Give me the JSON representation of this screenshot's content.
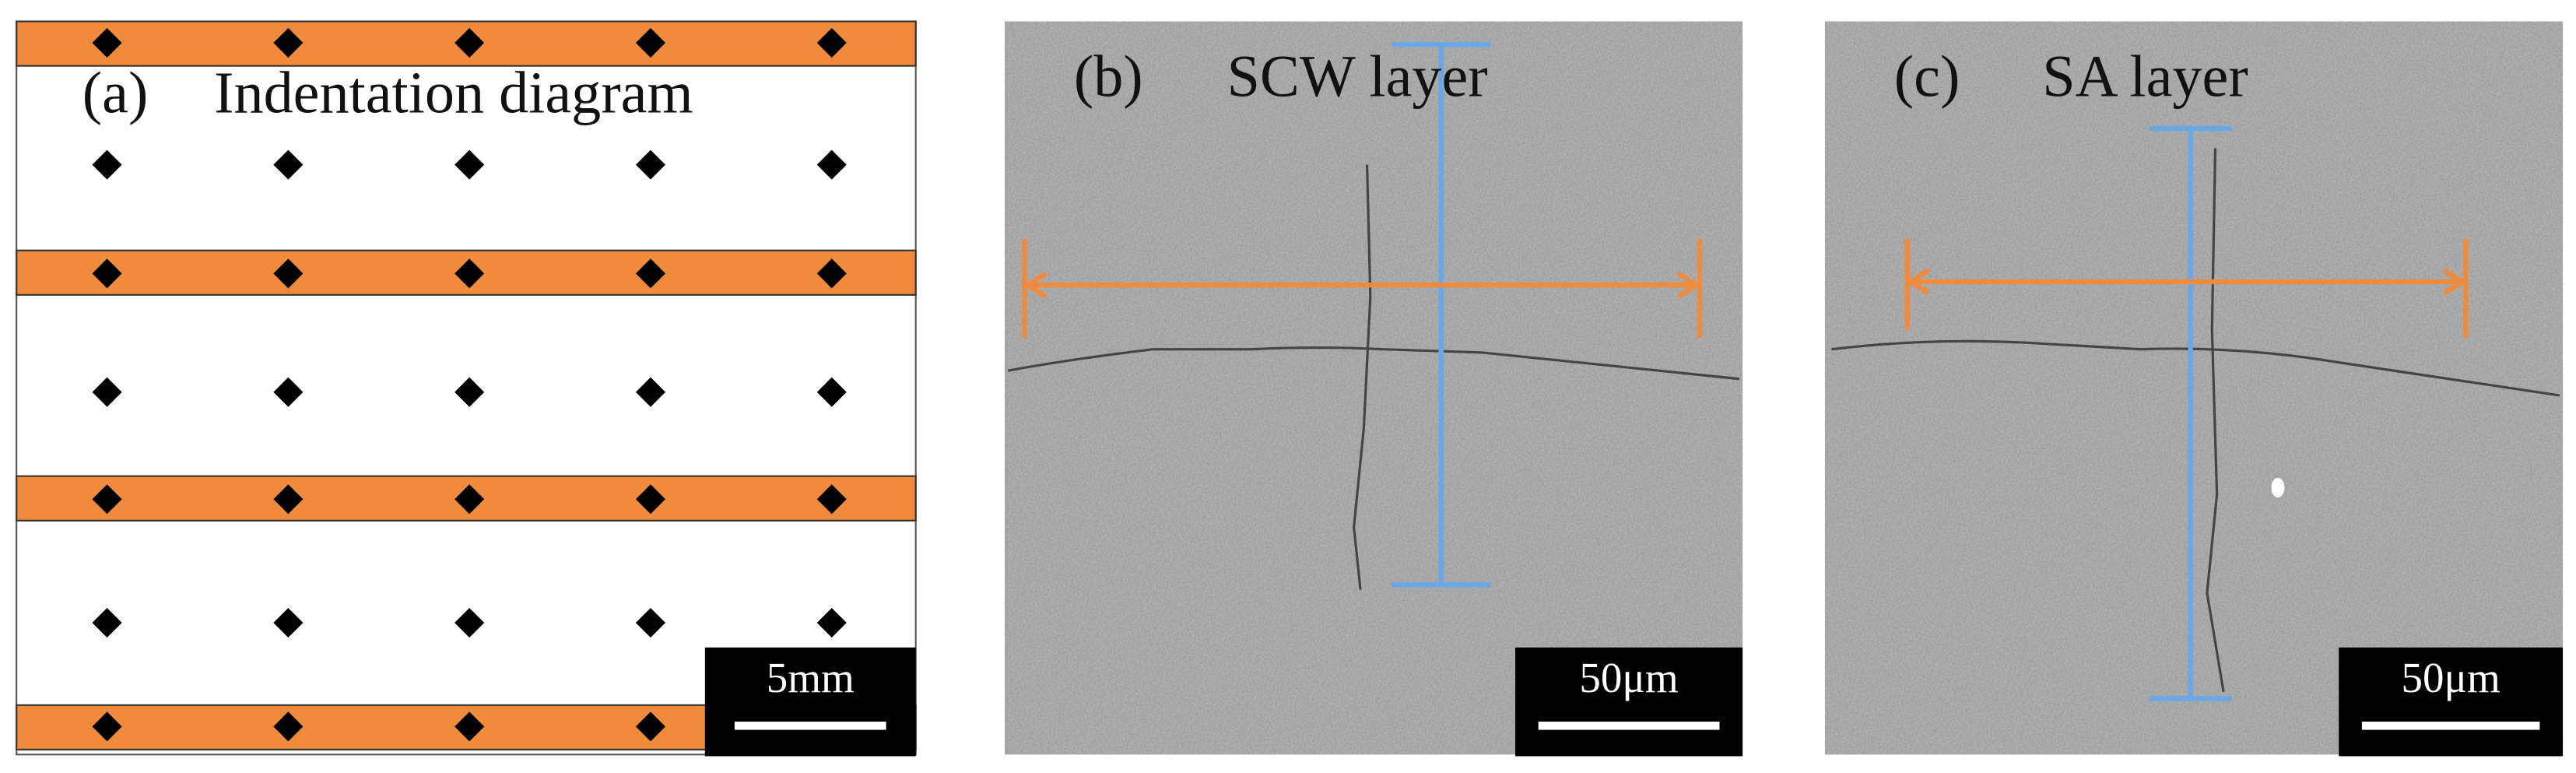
{
  "panels": [
    {
      "label": "(a)",
      "title": "Indentation diagram",
      "scale_bar": "5mm"
    },
    {
      "label": "(b)",
      "title": "SCW layer",
      "scale_bar": "50μm"
    },
    {
      "label": "(c)",
      "title": "SA layer",
      "scale_bar": "50μm"
    }
  ]
}
